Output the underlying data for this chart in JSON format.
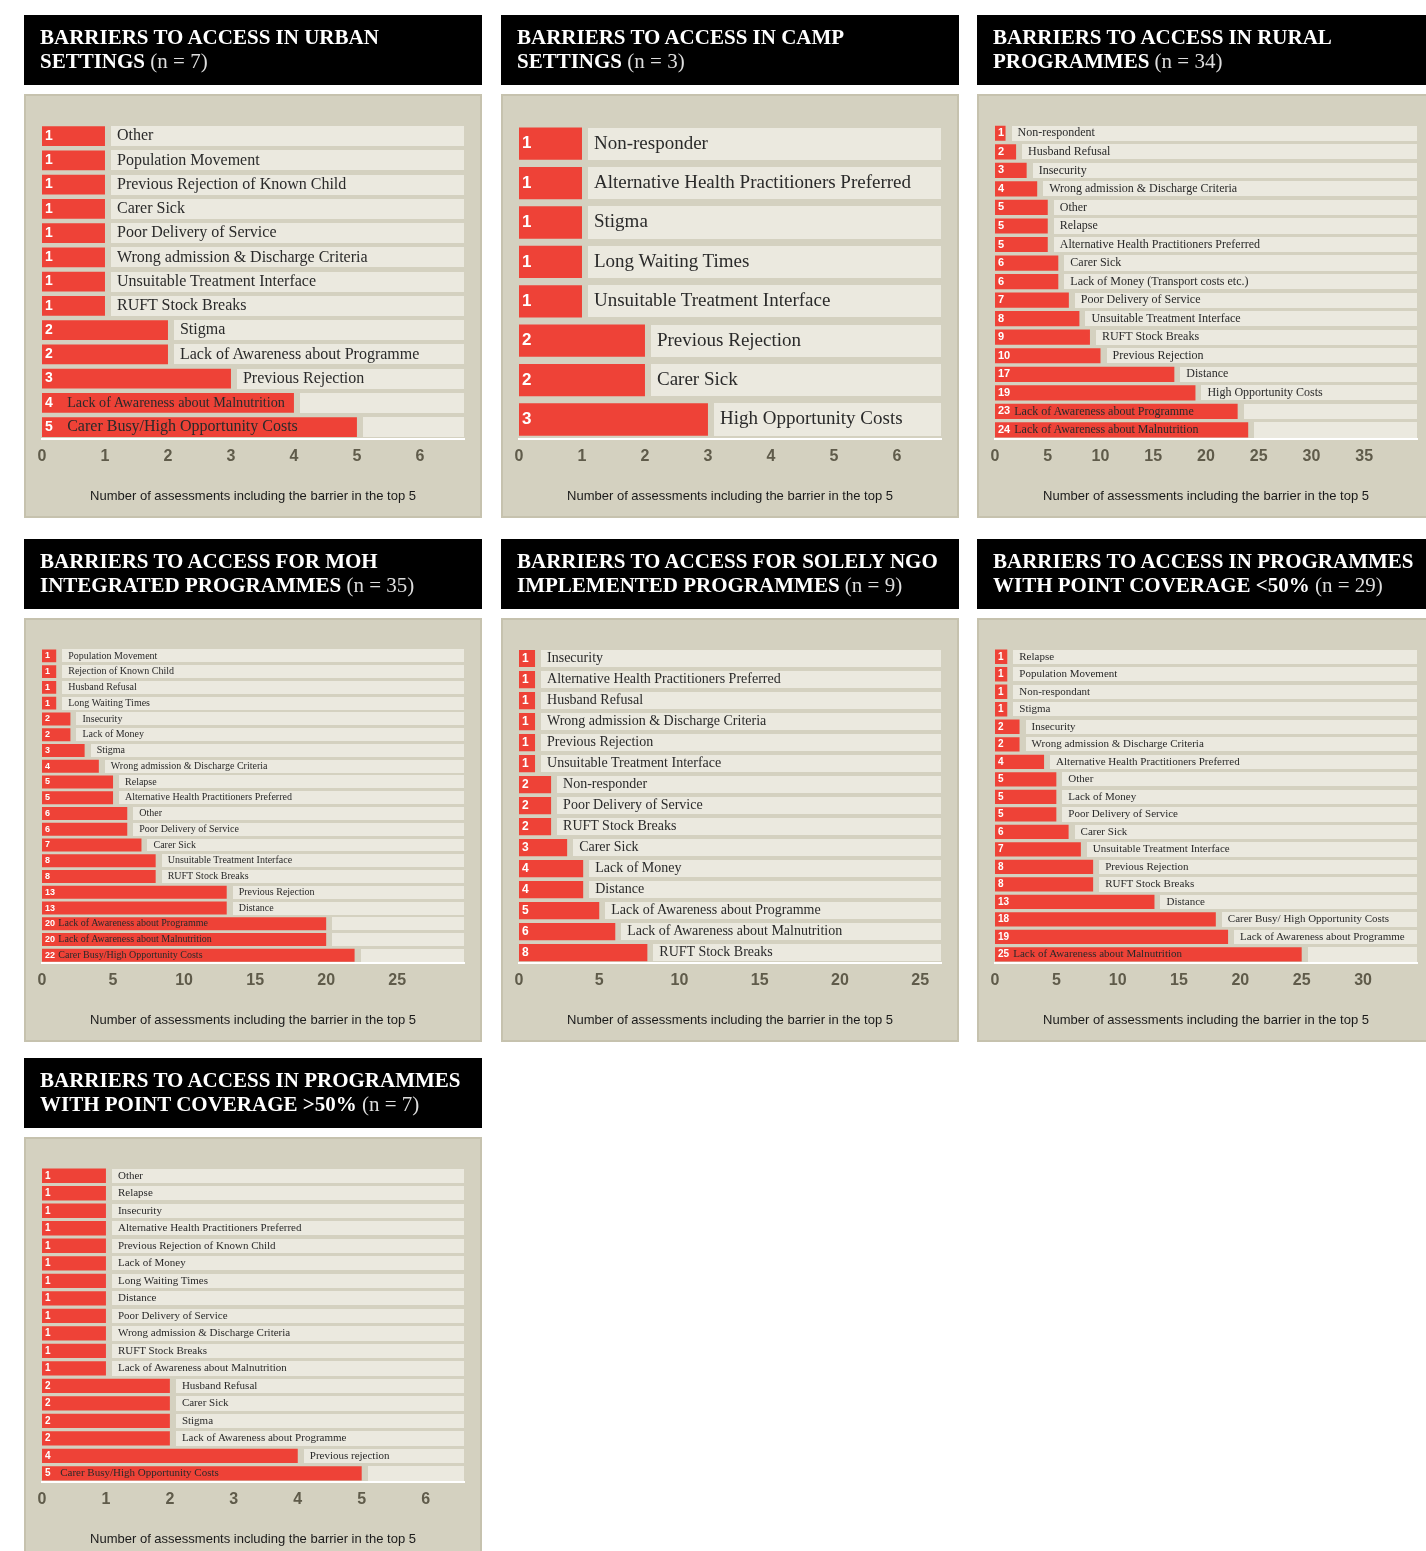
{
  "chart_data": [
    {
      "type": "bar",
      "orientation": "horizontal",
      "title": "BARRIERS TO ACCESS IN URBAN SETTINGS",
      "subtitle": "(n = 7)",
      "xlabel": "Number of assessments including the barrier in the top 5",
      "color": "#ee4237",
      "data_labels": true,
      "xlim": [
        0,
        6.7
      ],
      "xticks": [
        0,
        1,
        2,
        3,
        4,
        5,
        6
      ],
      "categories": [
        "Other",
        "Population Movement",
        "Previous Rejection of Known Child",
        "Carer Sick",
        "Poor Delivery of Service",
        "Wrong admission & Discharge Criteria",
        "Unsuitable Treatment Interface",
        "RUFT Stock Breaks",
        "Stigma",
        "Lack of Awareness about Programme",
        "Previous Rejection",
        "Lack of Awareness about Malnutrition",
        "Carer Busy/High Opportunity Costs"
      ],
      "values": [
        1,
        1,
        1,
        1,
        1,
        1,
        1,
        1,
        2,
        2,
        3,
        4,
        5
      ]
    },
    {
      "type": "bar",
      "orientation": "horizontal",
      "title": "BARRIERS TO ACCESS IN CAMP SETTINGS",
      "subtitle": "(n = 3)",
      "xlabel": "Number of assessments including the barrier in the top 5",
      "color": "#ee4237",
      "data_labels": true,
      "xlim": [
        0,
        6.7
      ],
      "xticks": [
        0,
        1,
        2,
        3,
        4,
        5,
        6
      ],
      "categories": [
        "Non-responder",
        "Alternative Health Practitioners Preferred",
        "Stigma",
        "Long Waiting Times",
        "Unsuitable Treatment Interface",
        "Previous Rejection",
        "Carer Sick",
        "High Opportunity Costs"
      ],
      "values": [
        1,
        1,
        1,
        1,
        1,
        2,
        2,
        3
      ]
    },
    {
      "type": "bar",
      "orientation": "horizontal",
      "title": "BARRIERS TO ACCESS IN RURAL PROGRAMMES",
      "subtitle": "(n = 34)",
      "xlabel": "Number of assessments including the barrier in the top 5",
      "color": "#ee4237",
      "data_labels": true,
      "xlim": [
        0,
        40
      ],
      "xticks": [
        0,
        5,
        10,
        15,
        20,
        25,
        30,
        35
      ],
      "categories": [
        "Non-respondent",
        "Husband Refusal",
        "Insecurity",
        "Wrong admission & Discharge Criteria",
        "Other",
        "Relapse",
        "Alternative Health Practitioners Preferred",
        "Carer Sick",
        "Lack of Money (Transport costs etc.)",
        "Poor Delivery of Service",
        "Unsuitable Treatment Interface",
        "RUFT Stock Breaks",
        "Previous Rejection",
        "Distance",
        "High Opportunity Costs",
        "Lack of Awareness about Programme",
        "Lack of Awareness about Malnutrition"
      ],
      "values": [
        1,
        2,
        3,
        4,
        5,
        5,
        5,
        6,
        6,
        7,
        8,
        9,
        10,
        17,
        19,
        23,
        24
      ]
    },
    {
      "type": "bar",
      "orientation": "horizontal",
      "title": "BARRIERS TO ACCESS FOR MOH INTEGRATED PROGRAMMES",
      "subtitle": "(n = 35)",
      "xlabel": "Number of assessments including the barrier in the top 5",
      "color": "#ee4237",
      "data_labels": true,
      "xlim": [
        0,
        29.7
      ],
      "xticks": [
        0,
        5,
        10,
        15,
        20,
        25
      ],
      "categories": [
        "Population Movement",
        "Rejection of Known Child",
        "Husband Refusal",
        "Long Waiting Times",
        "Insecurity",
        "Lack of Money",
        "Stigma",
        "Wrong admission & Discharge Criteria",
        "Relapse",
        "Alternative Health Practitioners Preferred",
        "Other",
        "Poor Delivery of Service",
        "Carer Sick",
        "Unsuitable Treatment Interface",
        "RUFT Stock Breaks",
        "Previous Rejection",
        "Distance",
        "Lack of Awareness about Programme",
        "Lack of Awareness about Malnutrition",
        "Carer Busy/High Opportunity Costs"
      ],
      "values": [
        1,
        1,
        1,
        1,
        2,
        2,
        3,
        4,
        5,
        5,
        6,
        6,
        7,
        8,
        8,
        13,
        13,
        20,
        20,
        22
      ]
    },
    {
      "type": "bar",
      "orientation": "horizontal",
      "title": "BARRIERS TO ACCESS FOR SOLELY NGO IMPLEMENTED PROGRAMMES",
      "subtitle": "(n = 9)",
      "xlabel": "Number of assessments including the barrier in the top 5",
      "color": "#ee4237",
      "data_labels": true,
      "xlim": [
        0,
        26.3
      ],
      "xticks": [
        0,
        5,
        10,
        15,
        20,
        25
      ],
      "categories": [
        "Insecurity",
        "Alternative Health Practitioners Preferred",
        "Husband Refusal",
        "Wrong admission & Discharge Criteria",
        "Previous Rejection",
        "Unsuitable Treatment Interface",
        "Non-responder",
        "Poor Delivery of Service",
        "RUFT Stock Breaks",
        "Carer Sick",
        "Lack of Money",
        "Distance",
        "Lack of Awareness about Programme",
        "Lack of Awareness about Malnutrition",
        "RUFT Stock Breaks"
      ],
      "values": [
        1,
        1,
        1,
        1,
        1,
        1,
        2,
        2,
        2,
        3,
        4,
        4,
        5,
        6,
        8
      ]
    },
    {
      "type": "bar",
      "orientation": "horizontal",
      "title": "BARRIERS TO ACCESS IN PROGRAMMES WITH POINT COVERAGE <50%",
      "subtitle": "(n = 29)",
      "xlabel": "Number of assessments including the barrier in the top 5",
      "color": "#ee4237",
      "data_labels": true,
      "xlim": [
        0,
        34.4
      ],
      "xticks": [
        0,
        5,
        10,
        15,
        20,
        25,
        30
      ],
      "categories": [
        "Relapse",
        "Population Movement",
        "Non-respondant",
        "Stigma",
        "Insecurity",
        "Wrong admission & Discharge Criteria",
        "Alternative Health Practitioners Preferred",
        "Other",
        "Lack of Money",
        "Poor Delivery of Service",
        "Carer Sick",
        "Unsuitable Treatment Interface",
        "Previous Rejection",
        "RUFT Stock Breaks",
        "Distance",
        "Carer Busy/ High Opportunity Costs",
        "Lack of Awareness about Programme",
        "Lack of Awareness about Malnutrition"
      ],
      "values": [
        1,
        1,
        1,
        1,
        2,
        2,
        4,
        5,
        5,
        5,
        6,
        7,
        8,
        8,
        13,
        18,
        19,
        25
      ]
    },
    {
      "type": "bar",
      "orientation": "horizontal",
      "title": "BARRIERS TO ACCESS IN PROGRAMMES WITH POINT COVERAGE >50%",
      "subtitle": "(n = 7)",
      "xlabel": "Number of assessments including the barrier in the top 5",
      "color": "#ee4237",
      "data_labels": true,
      "xlim": [
        0,
        6.6
      ],
      "xticks": [
        0,
        1,
        2,
        3,
        4,
        5,
        6
      ],
      "categories": [
        "Other",
        "Relapse",
        "Insecurity",
        "Alternative Health Practitioners Preferred",
        "Previous Rejection of Known Child",
        "Lack of Money",
        "Long Waiting Times",
        "Distance",
        "Poor Delivery of Service",
        "Wrong admission & Discharge Criteria",
        "RUFT Stock Breaks",
        "Lack of Awareness about Malnutrition",
        "Husband Refusal",
        "Carer Sick",
        "Stigma",
        "Lack of Awareness about Programme",
        "Previous rejection",
        "Carer Busy/High Opportunity Costs"
      ],
      "values": [
        1,
        1,
        1,
        1,
        1,
        1,
        1,
        1,
        1,
        1,
        1,
        1,
        2,
        2,
        2,
        2,
        4,
        5
      ]
    }
  ]
}
